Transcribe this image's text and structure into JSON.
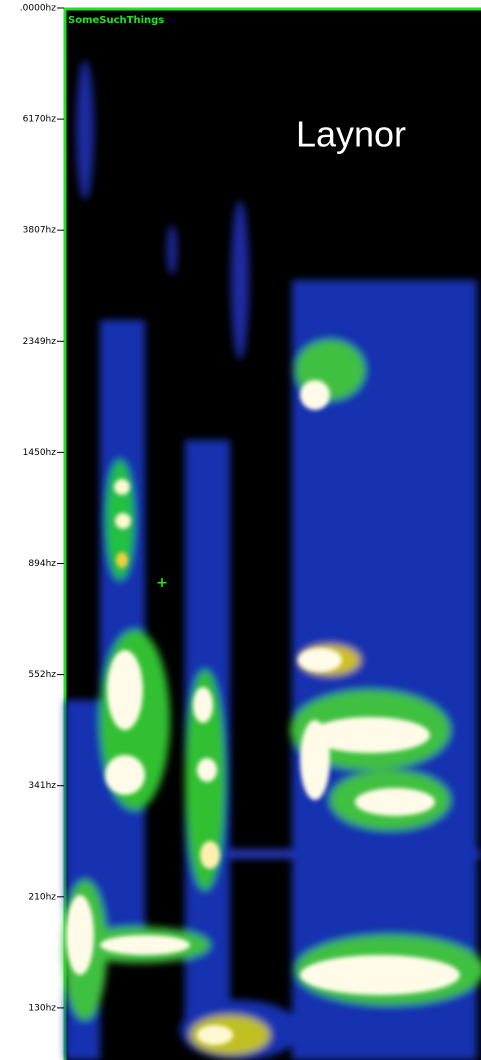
{
  "axis": {
    "labels": [
      ".0000hz",
      "6170hz",
      "3807hz",
      "2349hz",
      "1450hz",
      "894hz",
      "552hz",
      "341hz",
      "210hz",
      "130hz"
    ]
  },
  "panel": {
    "title": "SomeSuchThings"
  },
  "overlay": {
    "label": "Laynor"
  },
  "cursor": {
    "label": "+"
  }
}
